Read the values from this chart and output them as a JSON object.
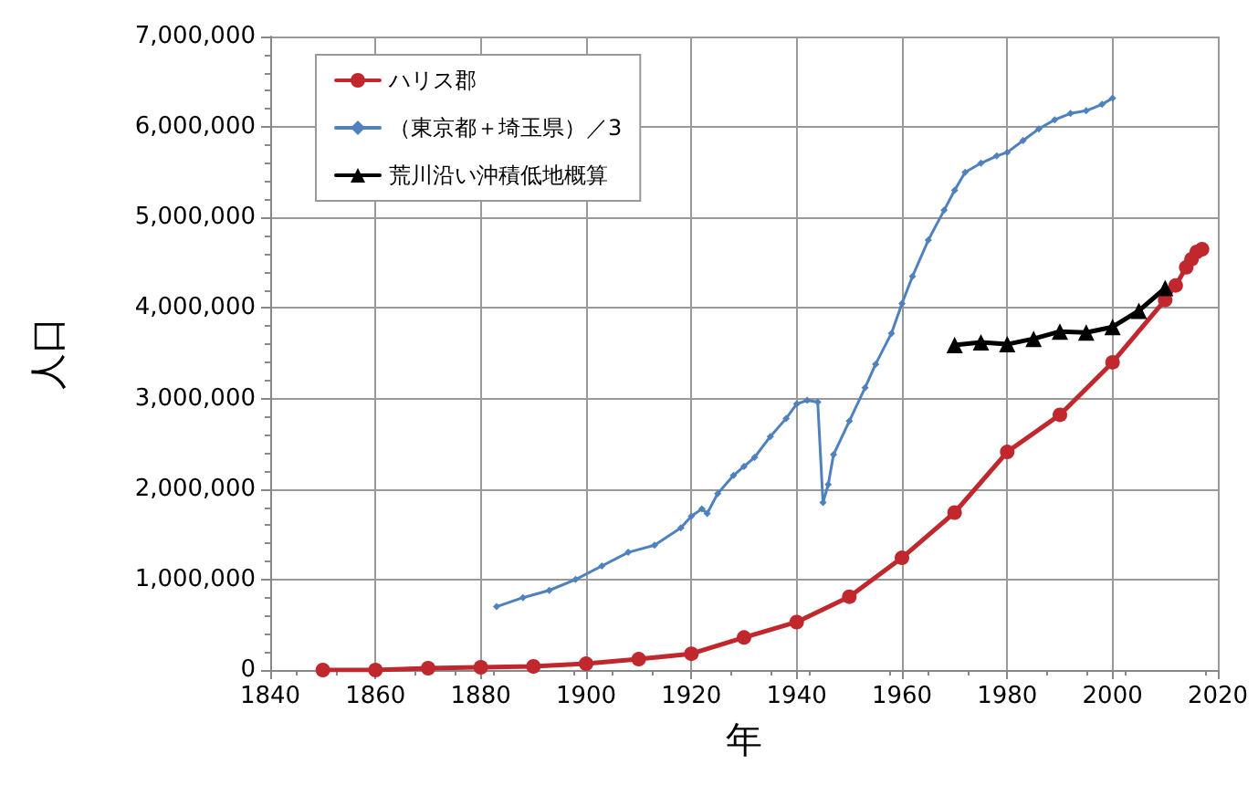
{
  "chart_data": {
    "type": "line",
    "xlabel": "年",
    "ylabel": "人口",
    "xlim": [
      1840,
      2020
    ],
    "xticks": [
      1840,
      1860,
      1880,
      1900,
      1920,
      1940,
      1960,
      1980,
      2000,
      2020
    ],
    "ylim": [
      0,
      7000000
    ],
    "yticks": [
      {
        "value": 0,
        "label": "0"
      },
      {
        "value": 1000000,
        "label": "1,000,000"
      },
      {
        "value": 2000000,
        "label": "2,000,000"
      },
      {
        "value": 3000000,
        "label": "3,000,000"
      },
      {
        "value": 4000000,
        "label": "4,000,000"
      },
      {
        "value": 5000000,
        "label": "5,000,000"
      },
      {
        "value": 6000000,
        "label": "6,000,000"
      },
      {
        "value": 7000000,
        "label": "7,000,000"
      }
    ],
    "grid": true,
    "legend": "top left",
    "series": [
      {
        "name": "ハリス郡",
        "color": "#c0282e",
        "marker": "circle",
        "x": [
          1850,
          1860,
          1870,
          1880,
          1890,
          1900,
          1910,
          1920,
          1930,
          1940,
          1950,
          1960,
          1970,
          1980,
          1990,
          2000,
          2010,
          2012,
          2014,
          2015,
          2016,
          2017
        ],
        "values": [
          0,
          0,
          20000,
          30000,
          40000,
          70000,
          120000,
          180000,
          360000,
          530000,
          810000,
          1240000,
          1740000,
          2410000,
          2820000,
          3400000,
          4090000,
          4250000,
          4450000,
          4540000,
          4620000,
          4650000
        ]
      },
      {
        "name": "（東京都＋埼玉県）／3",
        "color": "#4f81bd",
        "marker": "diamond",
        "x": [
          1883,
          1888,
          1893,
          1898,
          1903,
          1908,
          1913,
          1918,
          1920,
          1922,
          1923,
          1925,
          1928,
          1930,
          1932,
          1935,
          1938,
          1940,
          1942,
          1944,
          1945,
          1946,
          1947,
          1950,
          1953,
          1955,
          1958,
          1960,
          1962,
          1965,
          1968,
          1970,
          1972,
          1975,
          1978,
          1980,
          1983,
          1986,
          1989,
          1992,
          1995,
          1998,
          2000
        ],
        "values": [
          700000,
          800000,
          880000,
          1000000,
          1150000,
          1300000,
          1380000,
          1570000,
          1700000,
          1780000,
          1730000,
          1950000,
          2150000,
          2250000,
          2350000,
          2580000,
          2780000,
          2940000,
          2980000,
          2960000,
          1850000,
          2050000,
          2380000,
          2750000,
          3120000,
          3380000,
          3720000,
          4050000,
          4350000,
          4750000,
          5080000,
          5300000,
          5500000,
          5600000,
          5680000,
          5720000,
          5850000,
          5980000,
          6080000,
          6150000,
          6180000,
          6250000,
          6320000
        ]
      },
      {
        "name": "荒川沿い沖積低地概算",
        "color": "#000000",
        "marker": "triangle",
        "x": [
          1970,
          1975,
          1980,
          1985,
          1990,
          1995,
          2000,
          2005,
          2010
        ],
        "values": [
          3590000,
          3620000,
          3600000,
          3660000,
          3740000,
          3730000,
          3790000,
          3970000,
          4220000
        ]
      }
    ]
  }
}
